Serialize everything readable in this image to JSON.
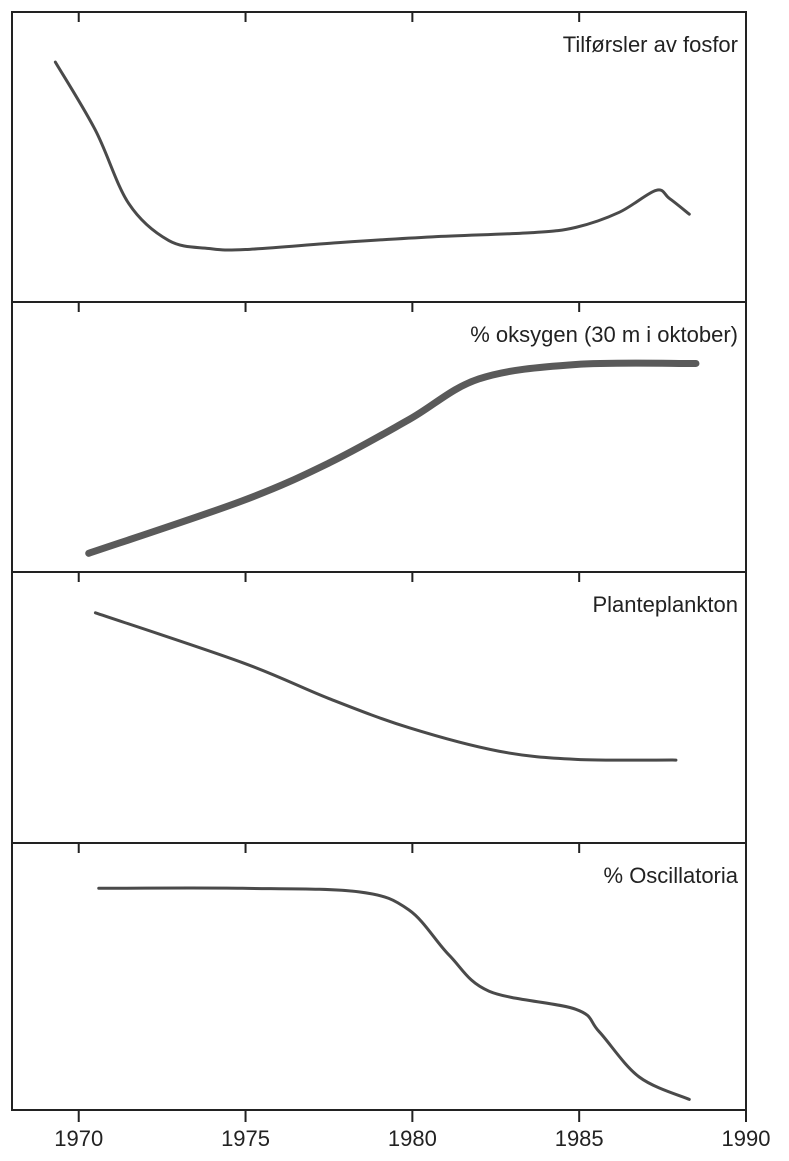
{
  "chart_data": [
    {
      "type": "line",
      "title": "Tilførsler av fosfor",
      "color": "#4a4a4a",
      "line_width": 3,
      "x": [
        1969.3,
        1970.5,
        1971.5,
        1972.7,
        1973.9,
        1975,
        1977.9,
        1980.6,
        1983.6,
        1984.9,
        1986.2,
        1987.3,
        1987.7,
        1988.3
      ],
      "values": [
        88.6,
        62.8,
        35,
        21,
        18,
        17.6,
        20.3,
        22.4,
        24,
        26,
        31.7,
        40,
        37,
        31
      ],
      "xlim": [
        1968,
        1990
      ],
      "ylim": [
        0,
        100
      ]
    },
    {
      "type": "line",
      "title": "% oksygen (30 m i oktober)",
      "color": "#5a5a5a",
      "line_width": 7,
      "x": [
        1970.3,
        1974.9,
        1977.5,
        1979.9,
        1982,
        1984.9,
        1988.5
      ],
      "values": [
        5.2,
        26.7,
        42.2,
        60,
        76.7,
        82.6,
        83
      ],
      "xlim": [
        1968,
        1990
      ],
      "ylim": [
        0,
        100
      ]
    },
    {
      "type": "line",
      "title": "Planteplankton",
      "color": "#4a4a4a",
      "line_width": 3,
      "x": [
        1970.5,
        1974.9,
        1977.5,
        1979.9,
        1982.6,
        1984.9,
        1987.9
      ],
      "values": [
        91.5,
        71.2,
        56.5,
        44.6,
        35,
        31.7,
        31.4
      ],
      "xlim": [
        1968,
        1990
      ],
      "ylim": [
        0,
        100
      ]
    },
    {
      "type": "line",
      "title": "% Oscillatoria",
      "color": "#4a4a4a",
      "line_width": 3,
      "x": [
        1970.6,
        1974.9,
        1978.4,
        1979.9,
        1981.1,
        1982.3,
        1984.9,
        1985.6,
        1986.8,
        1988.3
      ],
      "values": [
        89.5,
        89.5,
        88,
        80.5,
        61.8,
        46.8,
        39.3,
        30,
        11.2,
        1.9
      ],
      "xlim": [
        1968,
        1990
      ],
      "ylim": [
        0,
        100
      ],
      "xticks": [
        1970,
        1975,
        1980,
        1985,
        1990
      ]
    }
  ]
}
